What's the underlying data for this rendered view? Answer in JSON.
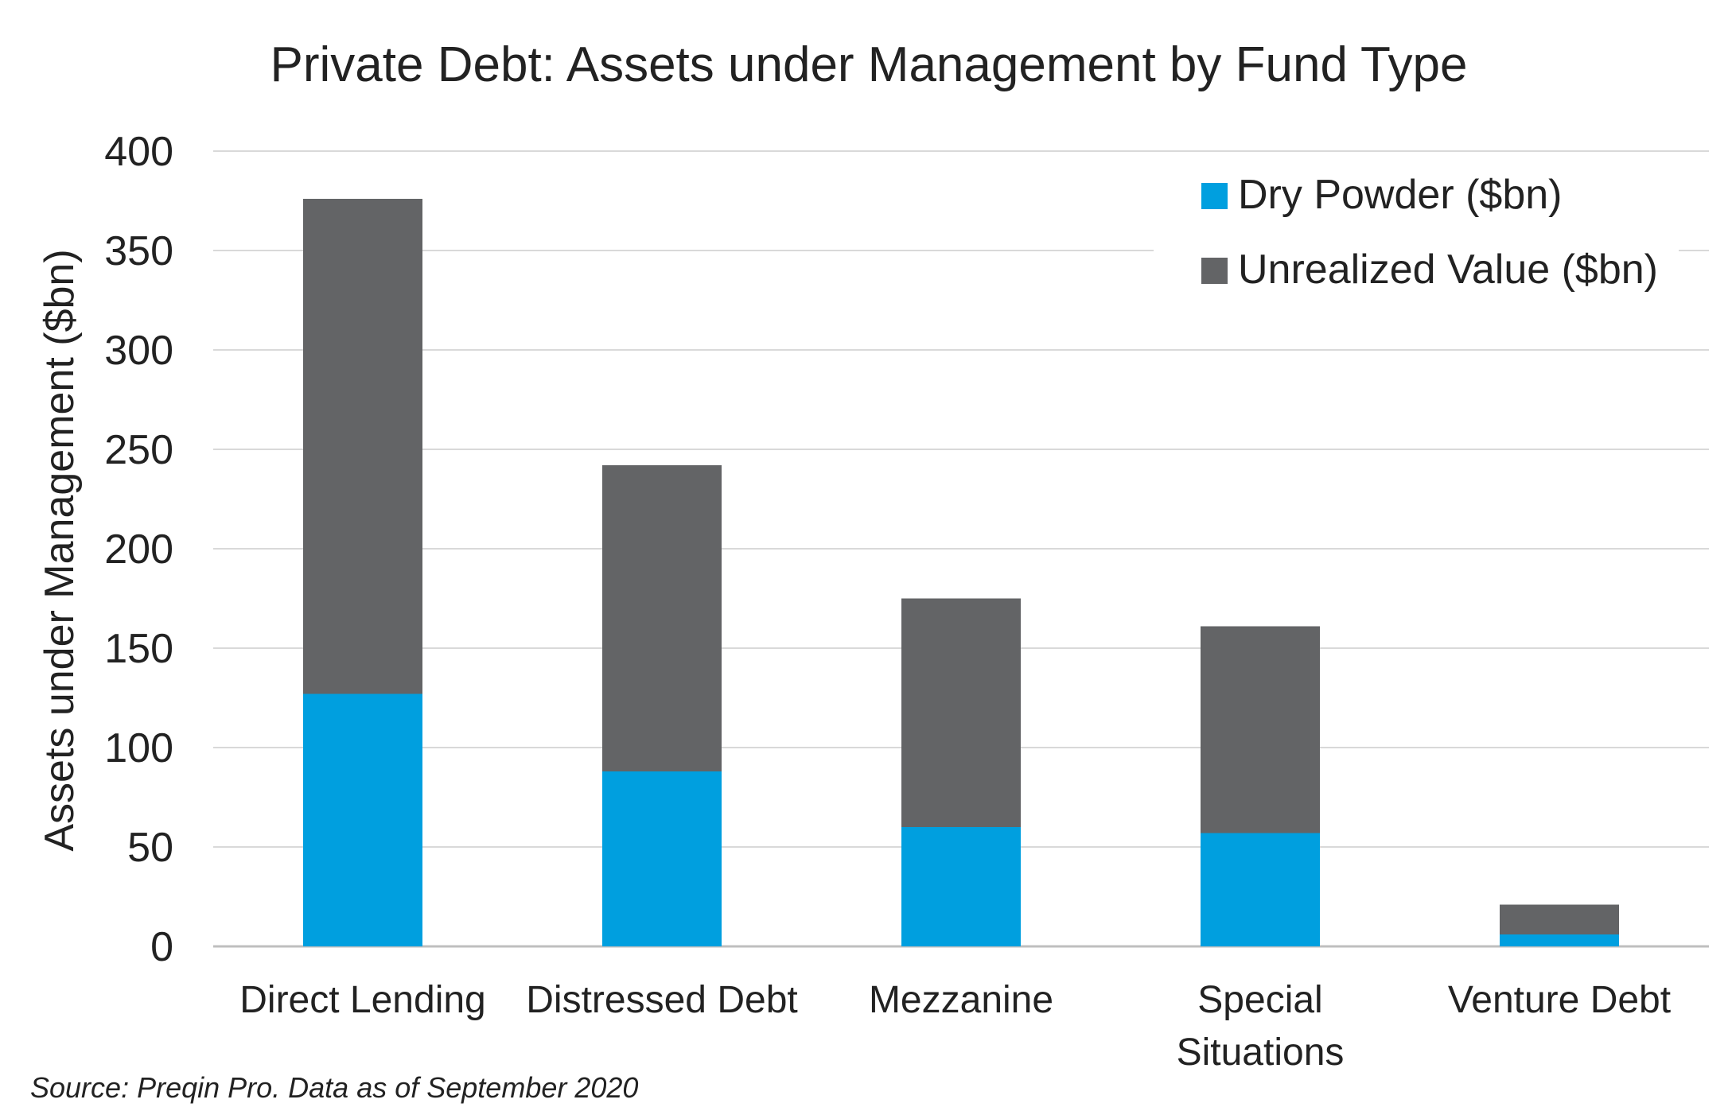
{
  "chart_data": {
    "type": "bar",
    "stacked": true,
    "title": "Private Debt: Assets under Management by Fund Type",
    "ylabel": "Assets under Management ($bn)",
    "xlabel": "",
    "ylim": [
      0,
      400
    ],
    "yticks": [
      "0",
      "50",
      "100",
      "150",
      "200",
      "250",
      "300",
      "350",
      "400"
    ],
    "grid": true,
    "legend_position": "top-right",
    "categories": [
      [
        "Direct Lending"
      ],
      [
        "Distressed Debt"
      ],
      [
        "Mezzanine"
      ],
      [
        "Special",
        "Situations"
      ],
      [
        "Venture Debt"
      ]
    ],
    "series": [
      {
        "name": "Dry Powder ($bn)",
        "color": "#009FDF",
        "values": [
          127,
          88,
          60,
          57,
          6
        ]
      },
      {
        "name": "Unrealized Value ($bn)",
        "color": "#636466",
        "values": [
          249,
          154,
          115,
          104,
          15
        ]
      }
    ],
    "source": "Source: Preqin Pro. Data as of September 2020"
  }
}
